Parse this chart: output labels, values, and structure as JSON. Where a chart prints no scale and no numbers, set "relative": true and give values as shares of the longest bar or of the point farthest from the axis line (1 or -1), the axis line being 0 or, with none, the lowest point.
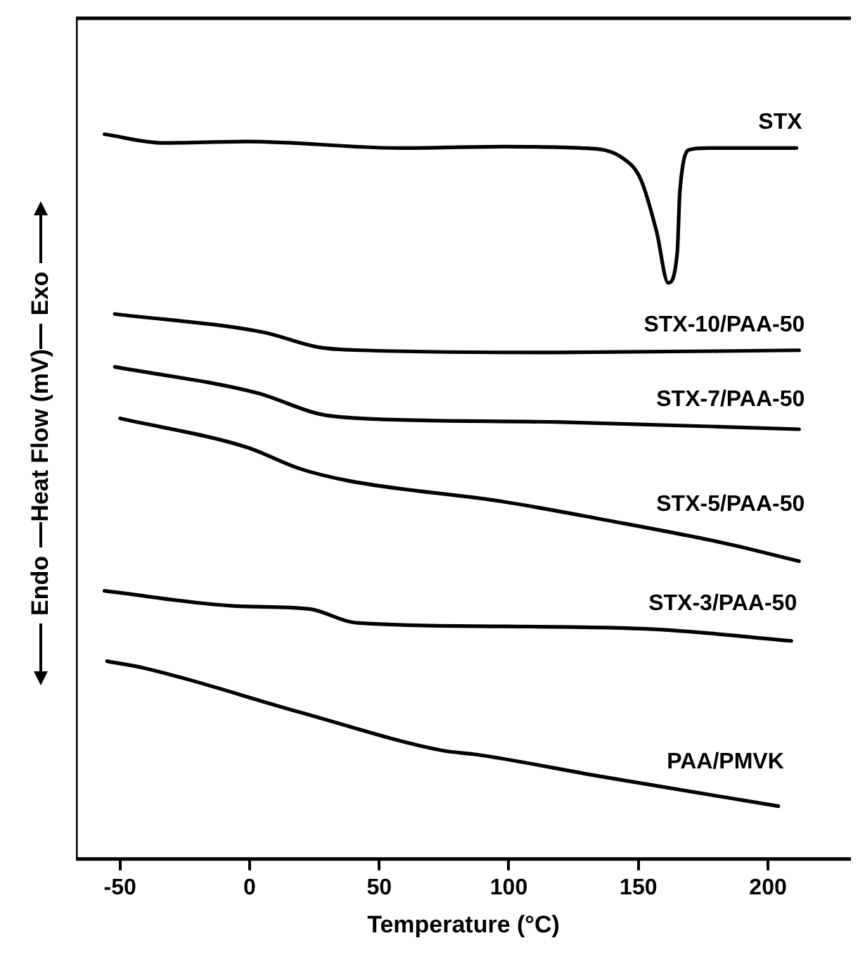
{
  "chart_data": {
    "type": "line",
    "relative": true,
    "xlabel": "Temperature (°C)",
    "ylabel": "Heat Flow (mV)",
    "annotations": [
      "Exo",
      "Endo"
    ],
    "xlim": [
      -67,
      232
    ],
    "xticks": [
      -50,
      0,
      50,
      100,
      150,
      200
    ],
    "grid": false,
    "legend": false,
    "marker": "none",
    "line_style": "solid",
    "series": [
      {
        "name": "STX",
        "color": "#000000",
        "x": [
          -56,
          -33,
          -1,
          58,
          98,
          128,
          144,
          151,
          157,
          161.5,
          165,
          166,
          170,
          177,
          211
        ],
        "values": [
          1.0,
          0.988,
          0.99,
          0.981,
          0.983,
          0.981,
          0.967,
          0.937,
          0.866,
          0.795,
          0.837,
          0.921,
          0.979,
          0.981,
          0.981
        ]
      },
      {
        "name": "STX-10/PAA-50",
        "color": "#000000",
        "x": [
          -52,
          5,
          27,
          43,
          118,
          212
        ],
        "values": [
          0.752,
          0.727,
          0.706,
          0.702,
          0.699,
          0.702
        ]
      },
      {
        "name": "STX-7/PAA-50",
        "color": "#000000",
        "x": [
          -52,
          3,
          27,
          43,
          118,
          212
        ],
        "values": [
          0.679,
          0.643,
          0.614,
          0.608,
          0.603,
          0.593
        ]
      },
      {
        "name": "STX-5/PAA-50",
        "color": "#000000",
        "x": [
          -50,
          -1,
          19,
          38,
          98,
          137,
          183,
          212
        ],
        "values": [
          0.608,
          0.568,
          0.539,
          0.522,
          0.493,
          0.468,
          0.436,
          0.411
        ]
      },
      {
        "name": "STX-3/PAA-50",
        "color": "#000000",
        "x": [
          -56,
          -5,
          23,
          41,
          98,
          157,
          209
        ],
        "values": [
          0.37,
          0.349,
          0.345,
          0.326,
          0.321,
          0.317,
          0.301
        ]
      },
      {
        "name": "PAA/PMVK",
        "color": "#000000",
        "x": [
          -55,
          -40,
          19,
          74,
          88,
          137,
          204
        ],
        "values": [
          0.273,
          0.263,
          0.203,
          0.15,
          0.144,
          0.113,
          0.073
        ]
      }
    ]
  }
}
